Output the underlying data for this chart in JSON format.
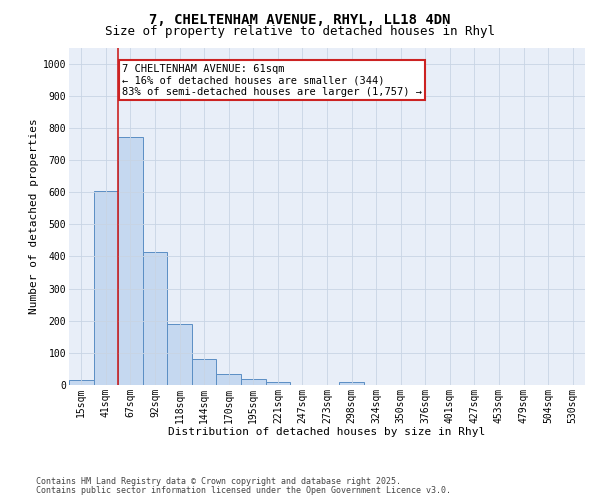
{
  "title_line1": "7, CHELTENHAM AVENUE, RHYL, LL18 4DN",
  "title_line2": "Size of property relative to detached houses in Rhyl",
  "xlabel": "Distribution of detached houses by size in Rhyl",
  "ylabel": "Number of detached properties",
  "categories": [
    "15sqm",
    "41sqm",
    "67sqm",
    "92sqm",
    "118sqm",
    "144sqm",
    "170sqm",
    "195sqm",
    "221sqm",
    "247sqm",
    "273sqm",
    "298sqm",
    "324sqm",
    "350sqm",
    "376sqm",
    "401sqm",
    "427sqm",
    "453sqm",
    "479sqm",
    "504sqm",
    "530sqm"
  ],
  "values": [
    15,
    605,
    770,
    415,
    190,
    80,
    35,
    18,
    10,
    0,
    0,
    10,
    0,
    0,
    0,
    0,
    0,
    0,
    0,
    0,
    0
  ],
  "bar_color": "#c5d8f0",
  "bar_edge_color": "#5b8ec4",
  "vline_x_index": 1.5,
  "vline_color": "#cc2222",
  "annotation_text": "7 CHELTENHAM AVENUE: 61sqm\n← 16% of detached houses are smaller (344)\n83% of semi-detached houses are larger (1,757) →",
  "annotation_box_color": "#ffffff",
  "annotation_box_edge_color": "#cc2222",
  "ylim": [
    0,
    1050
  ],
  "yticks": [
    0,
    100,
    200,
    300,
    400,
    500,
    600,
    700,
    800,
    900,
    1000
  ],
  "grid_color": "#c8d4e4",
  "bg_color": "#e8eef8",
  "footer_line1": "Contains HM Land Registry data © Crown copyright and database right 2025.",
  "footer_line2": "Contains public sector information licensed under the Open Government Licence v3.0.",
  "title_fontsize": 10,
  "subtitle_fontsize": 9,
  "axis_label_fontsize": 8,
  "tick_fontsize": 7,
  "annotation_fontsize": 7.5,
  "footer_fontsize": 6
}
